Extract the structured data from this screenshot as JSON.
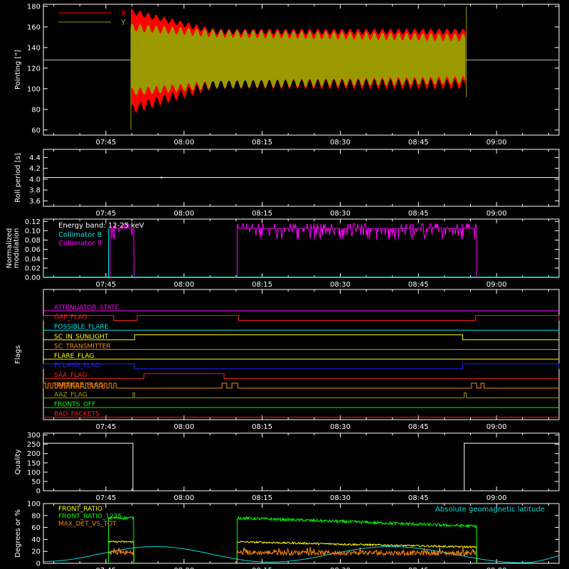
{
  "figure": {
    "background": "#000000",
    "axis_color": "#ffffff"
  },
  "time_axis": {
    "tick_labels": [
      "07:45",
      "08:00",
      "08:15",
      "08:30",
      "08:45",
      "09:00"
    ],
    "tick_minutes": [
      465,
      480,
      495,
      510,
      525,
      540
    ],
    "range_minutes": [
      453,
      552
    ]
  },
  "chart_data": [
    {
      "id": "pointing",
      "type": "line",
      "ylabel": "Pointing [\"]",
      "ylim": [
        55,
        182
      ],
      "yticks": [
        60,
        80,
        100,
        120,
        140,
        160,
        180
      ],
      "reference_line": 128,
      "legend_placement": "top-left",
      "series": [
        {
          "name": "X",
          "color": "#ff0000",
          "start": 469.8,
          "end": 534.2,
          "center": 133,
          "amp_start": 56,
          "amp_mid": 30,
          "amp_end": 30
        },
        {
          "name": "Y",
          "color": "#9a9a00",
          "start": 469.8,
          "end": 534.2,
          "center": 131,
          "amp_start": 38,
          "amp_mid": 30,
          "amp_end": 25
        }
      ]
    },
    {
      "id": "roll_period",
      "type": "line",
      "ylabel": "Roll period [s]",
      "ylim": [
        3.5,
        4.55
      ],
      "yticks": [
        "3.6",
        "3.8",
        "4.0",
        "4.2",
        "4.4"
      ],
      "ytick_values": [
        3.6,
        3.8,
        4.0,
        4.2,
        4.4
      ],
      "series": [
        {
          "color": "#ffffff",
          "value": 4.03
        }
      ]
    },
    {
      "id": "modulation",
      "type": "line",
      "ylabel": "Normalized modulation",
      "ylim": [
        0,
        0.125
      ],
      "yticks": [
        "0.00",
        "0.02",
        "0.04",
        "0.06",
        "0.08",
        "0.10",
        "0.12"
      ],
      "ytick_values": [
        0,
        0.02,
        0.04,
        0.06,
        0.08,
        0.1,
        0.12
      ],
      "legend_placement": "top-left",
      "legend_title": "Energy band: 12-25 keV",
      "series": [
        {
          "name": "Collimator 8",
          "color": "#00e5e5",
          "segments": [
            [
              465.5,
              466.5
            ]
          ]
        },
        {
          "name": "Collimator 9",
          "color": "#ff00ff",
          "segments": [
            [
              465.8,
              470.4
            ],
            [
              490.2,
              536.2
            ]
          ],
          "value": 0.105
        }
      ]
    },
    {
      "id": "flags",
      "type": "line",
      "ylabel": "Flags",
      "flags": [
        {
          "name": "ATTENUATOR_STATE",
          "color": "#ff00ff",
          "high": []
        },
        {
          "name": "GAP_FLAG",
          "color": "#ff2020",
          "high": [
            [
              453,
              466.5
            ],
            [
              471,
              490.5
            ],
            [
              536,
              552
            ]
          ]
        },
        {
          "name": "POSSIBLE_FLARE",
          "color": "#00e5e5",
          "high": []
        },
        {
          "name": "SC_IN_SUNLIGHT",
          "color": "#ffff00",
          "high": [
            [
              470.5,
              533.5
            ]
          ]
        },
        {
          "name": "SC_TRANSMITTER",
          "color": "#ff8800",
          "high": []
        },
        {
          "name": "FLARE_FLAG",
          "color": "#ffff00",
          "high": []
        },
        {
          "name": "ECLIPSE_FLAG",
          "color": "#2020ff",
          "high": [
            [
              453,
              470.5
            ],
            [
              533.5,
              552
            ]
          ]
        },
        {
          "name": "SAA_FLAG",
          "color": "#ff2020",
          "high": [
            [
              472.3,
              487.7
            ]
          ]
        },
        {
          "name": "PARTICLE_FLAG",
          "color": "#ff8800",
          "high": [
            [
              453,
              466.5
            ],
            [
              487.3,
              488.2
            ],
            [
              489.2,
              490.3
            ],
            [
              535.2,
              536.2
            ],
            [
              537.0,
              537.6
            ]
          ]
        },
        {
          "name": "AAZ_FLAG",
          "color": "#a0a000",
          "high": [
            [
              470.2,
              470.5
            ],
            [
              533.8,
              534.2
            ]
          ]
        },
        {
          "name": "FRONTS_OFF",
          "color": "#00ff00",
          "high": []
        },
        {
          "name": "BAD_PACKETS",
          "color": "#ff2020",
          "high": []
        }
      ]
    },
    {
      "id": "quality",
      "type": "line",
      "ylabel": "Quality",
      "ylim": [
        0,
        310
      ],
      "yticks": [
        "0",
        "50",
        "100",
        "150",
        "200",
        "250",
        "300"
      ],
      "ytick_values": [
        0,
        50,
        100,
        150,
        200,
        250,
        300
      ],
      "series": [
        {
          "color": "#ffffff",
          "high_value": 256,
          "high": [
            [
              453,
              470.2
            ],
            [
              533.8,
              552
            ]
          ]
        }
      ]
    },
    {
      "id": "geo",
      "type": "line",
      "ylabel": "Degrees or %",
      "ylim": [
        0,
        100
      ],
      "yticks": [
        "0",
        "20",
        "40",
        "60",
        "80",
        "100"
      ],
      "ytick_values": [
        0,
        20,
        40,
        60,
        80,
        100
      ],
      "legend_placement": "top-left",
      "right_label": "Absolute geomagnetic latitude",
      "series": [
        {
          "name": "FRONT_RATIO",
          "color": "#ffff00",
          "segments": [
            [
              465.5,
              470.4
            ],
            [
              490.2,
              536.2
            ]
          ],
          "values_start": 36,
          "values_end": 27
        },
        {
          "name": "FRONT_RATIO_1225",
          "color": "#00ff00",
          "segments": [
            [
              465.5,
              470.4
            ],
            [
              490.2,
              536.2
            ]
          ],
          "values_start": 76,
          "values_end": 62
        },
        {
          "name": "MAX_DET_VS_TOT",
          "color": "#ff8800",
          "segments": [
            [
              465.5,
              470.4
            ],
            [
              490.2,
              536.2
            ]
          ],
          "values_start": 18,
          "values_end": 17
        },
        {
          "name": "Absolute geomagnetic latitude",
          "color": "#00dddd",
          "minima": [
            [
              453,
              3
            ],
            [
              496.5,
              2
            ],
            [
              545,
              1
            ]
          ],
          "maxima": [
            [
              474.5,
              28
            ],
            [
              519.5,
              28
            ]
          ]
        }
      ]
    }
  ]
}
